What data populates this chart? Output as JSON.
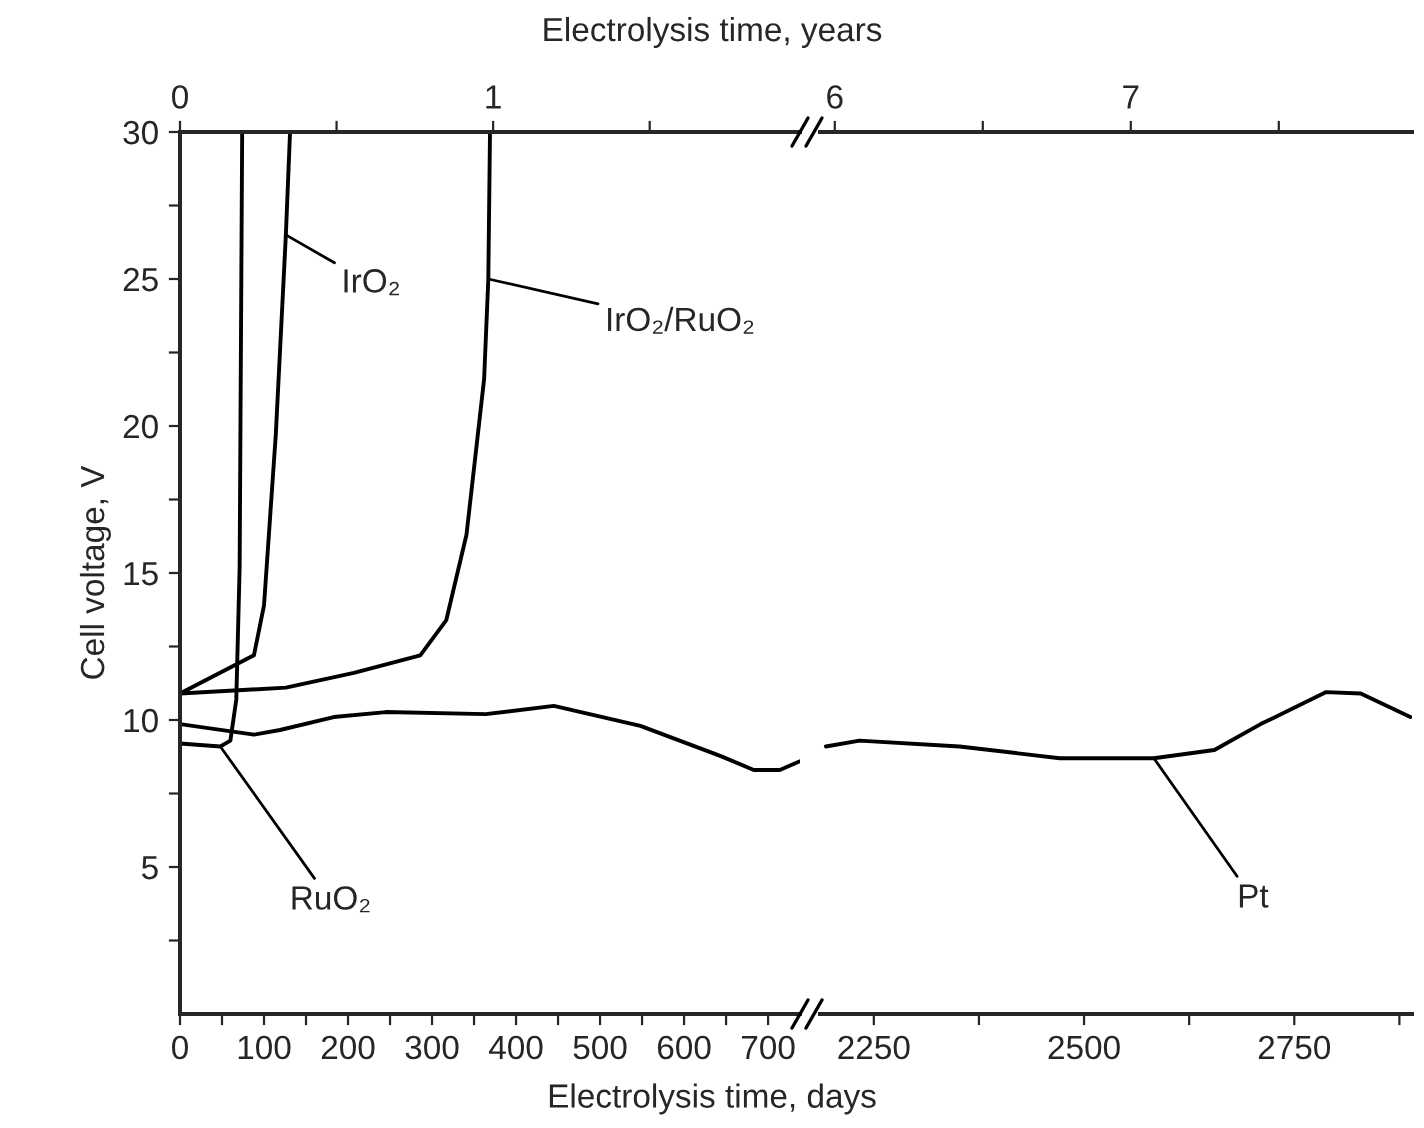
{
  "chart_data": [
    {
      "type": "line",
      "ylabel": "Cell voltage, V",
      "xlabel": "Electrolysis time, days",
      "x2label": "Electrolysis time, years",
      "xlim": [
        0,
        738
      ],
      "xticks": [
        0,
        {
          "value": 50,
          "label": null
        },
        100,
        {
          "value": 150,
          "label": null
        },
        200,
        {
          "value": 250,
          "label": null
        },
        300,
        {
          "value": 350,
          "label": null
        },
        400,
        {
          "value": 450,
          "label": null
        },
        500,
        {
          "value": 550,
          "label": null
        },
        600,
        {
          "value": 650,
          "label": null
        },
        700
      ],
      "x2lim": [
        0,
        1.98
      ],
      "x2ticks": [
        0,
        {
          "value": 0.5,
          "label": null
        },
        1,
        {
          "value": 1.5,
          "label": null
        }
      ],
      "ylim": [
        0,
        30
      ],
      "yticks": [
        {
          "value": 2.5,
          "label": null
        },
        5,
        {
          "value": 7.5,
          "label": null
        },
        10,
        {
          "value": 12.5,
          "label": null
        },
        15,
        {
          "value": 17.5,
          "label": null
        },
        20,
        {
          "value": 22.5,
          "label": null
        },
        25,
        {
          "value": 27.5,
          "label": null
        },
        30
      ],
      "series": [
        {
          "color": "#000000",
          "x": [
            0,
            88,
            119,
            183,
            245,
            364,
            445,
            548,
            643,
            683,
            714,
            738
          ],
          "values": [
            9.86,
            9.5,
            9.66,
            10.1,
            10.27,
            10.2,
            10.48,
            9.8,
            8.78,
            8.3,
            8.3,
            8.6
          ]
        },
        {
          "name": "IrO₂/RuO₂",
          "color": "#000000",
          "x": [
            0,
            126,
            207,
            286,
            317,
            341,
            362,
            367,
            369
          ],
          "values": [
            10.9,
            11.1,
            11.6,
            12.2,
            13.4,
            16.3,
            21.6,
            25,
            30
          ]
        },
        {
          "name": "IrO₂",
          "color": "#000000",
          "x": [
            0,
            88,
            100,
            114,
            126,
            131
          ],
          "values": [
            10.9,
            12.2,
            13.9,
            19.7,
            26.5,
            30
          ]
        },
        {
          "name": "RuO₂",
          "color": "#000000",
          "x": [
            0,
            48,
            60,
            67,
            71,
            74
          ],
          "values": [
            9.2,
            9.1,
            9.3,
            10.7,
            15.2,
            30
          ]
        }
      ]
    },
    {
      "type": "line",
      "tick_labels": "x",
      "xlim": [
        2186,
        2890
      ],
      "xticks": [
        2250,
        {
          "value": 2375,
          "label": null
        },
        2500,
        {
          "value": 2625,
          "label": null
        },
        2750,
        {
          "value": 2875,
          "label": null
        }
      ],
      "x2lim": [
        5.95,
        7.95
      ],
      "x2ticks": [
        6,
        {
          "value": 6.5,
          "label": null
        },
        7,
        {
          "value": 7.5,
          "label": null
        }
      ],
      "ylim": [
        0,
        30
      ],
      "series": [
        {
          "name": "Pt",
          "color": "#000000",
          "x": [
            2193,
            2233,
            2352,
            2471,
            2583,
            2655,
            2710,
            2788,
            2829,
            2888
          ],
          "values": [
            9.1,
            9.3,
            9.1,
            8.7,
            8.7,
            8.98,
            9.86,
            10.95,
            10.9,
            10.1
          ]
        }
      ]
    }
  ]
}
